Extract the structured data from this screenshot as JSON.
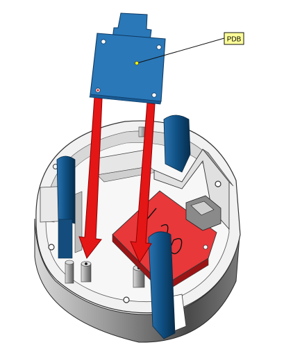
{
  "callout": {
    "label": "PDB"
  },
  "colors": {
    "pdb_board": "#2a78b8",
    "pdb_board_dark": "#1a5a92",
    "callout_bg": "#ffff99",
    "callout_dot": "#f4f400",
    "arrow": "#e51616",
    "arrow_edge": "#8b0000",
    "housing_light": "#f2f2f2",
    "housing_wall": "#bfbfbf",
    "housing_dark": "#5a5a5a",
    "red_board": "#e8383a",
    "blue_post": "#0f4f82"
  }
}
